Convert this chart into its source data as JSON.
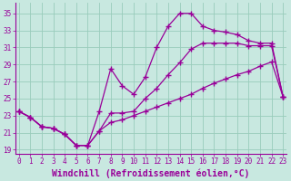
{
  "xlabel": "Windchill (Refroidissement éolien,°C)",
  "ylabel": "",
  "bg_color": "#c8e8e0",
  "grid_color": "#99ccbb",
  "line_color": "#990099",
  "xlim": [
    -0.3,
    23.3
  ],
  "ylim": [
    18.5,
    36.2
  ],
  "xticks": [
    0,
    1,
    2,
    3,
    4,
    5,
    6,
    7,
    8,
    9,
    10,
    11,
    12,
    13,
    14,
    15,
    16,
    17,
    18,
    19,
    20,
    21,
    22,
    23
  ],
  "yticks": [
    19,
    21,
    23,
    25,
    27,
    29,
    31,
    33,
    35
  ],
  "line1_x": [
    0,
    1,
    2,
    3,
    4,
    5,
    6,
    7,
    8,
    9,
    10,
    11,
    12,
    13,
    14,
    15,
    16,
    17,
    18,
    19,
    20,
    21,
    22,
    23
  ],
  "line1_y": [
    23.5,
    22.8,
    21.7,
    21.5,
    20.8,
    19.5,
    19.5,
    21.2,
    23.3,
    23.3,
    23.5,
    25.0,
    26.2,
    27.8,
    29.2,
    30.8,
    31.5,
    31.5,
    31.5,
    31.5,
    31.2,
    31.2,
    31.2,
    25.2
  ],
  "line2_x": [
    0,
    1,
    2,
    3,
    4,
    5,
    6,
    7,
    8,
    9,
    10,
    11,
    12,
    13,
    14,
    15,
    16,
    17,
    18,
    19,
    20,
    21,
    22,
    23
  ],
  "line2_y": [
    23.5,
    22.8,
    21.7,
    21.5,
    20.8,
    19.5,
    19.5,
    23.5,
    28.5,
    26.5,
    25.5,
    27.5,
    31.0,
    33.5,
    35.0,
    35.0,
    33.5,
    33.0,
    32.8,
    32.5,
    31.8,
    31.5,
    31.5,
    25.2
  ],
  "line3_x": [
    0,
    1,
    2,
    3,
    4,
    5,
    6,
    7,
    8,
    9,
    10,
    11,
    12,
    13,
    14,
    15,
    16,
    17,
    18,
    19,
    20,
    21,
    22,
    23
  ],
  "line3_y": [
    23.5,
    22.8,
    21.7,
    21.5,
    20.8,
    19.5,
    19.5,
    21.2,
    22.2,
    22.5,
    23.0,
    23.5,
    24.0,
    24.5,
    25.0,
    25.5,
    26.2,
    26.8,
    27.3,
    27.8,
    28.2,
    28.8,
    29.3,
    25.2
  ],
  "marker": "+",
  "markersize": 4,
  "linewidth": 0.9,
  "tick_fontsize": 5.5,
  "xlabel_fontsize": 7.0
}
